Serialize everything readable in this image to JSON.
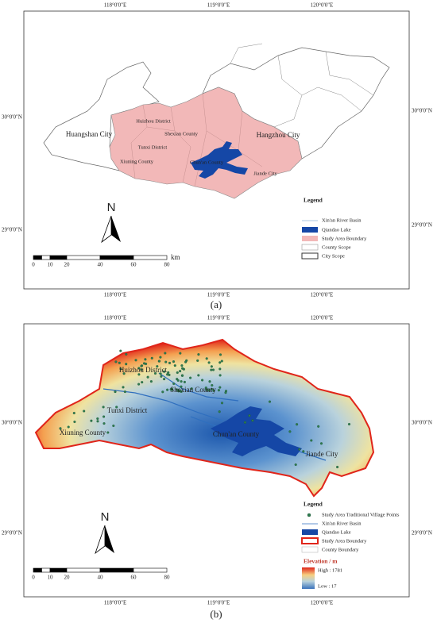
{
  "panel_a": {
    "caption": "(a)",
    "lon_top": [
      "118°0'0\"E",
      "119°0'0\"E",
      "120°0'0\"E"
    ],
    "lon_bottom": [
      "118°0'0\"E",
      "119°0'0\"E",
      "120°0'0\"E"
    ],
    "lat_left": [
      "30°0'0\"N",
      "29°0'0\"N"
    ],
    "lat_right": [
      "30°0'0\"N",
      "29°0'0\"N"
    ],
    "places": [
      "Huangshan City",
      "Huizhou District",
      "Shexian County",
      "Tunxi District",
      "Xiuning County",
      "Chun'an County",
      "Jiande City",
      "Hangzhou City"
    ],
    "north": "N",
    "scale": {
      "ticks": [
        0,
        10,
        20,
        40,
        60,
        80
      ],
      "unit": "km"
    },
    "legend": {
      "title": "Legend",
      "items": [
        "Xin'an River Basin",
        "Qiandao Lake",
        "Study Area Boundary",
        "County Scope",
        "City Scope"
      ]
    }
  },
  "panel_b": {
    "caption": "(b)",
    "lon_top": [
      "118°0'0\"E",
      "119°0'0\"E",
      "120°0'0\"E"
    ],
    "lon_bottom": [
      "118°0'0\"E",
      "119°0'0\"E",
      "120°0'0\"E"
    ],
    "lat_left": [
      "30°0'0\"N",
      "29°0'0\"N"
    ],
    "lat_right": [
      "30°0'0\"N",
      "29°0'0\"N"
    ],
    "places": [
      "Huizhou District",
      "Shexian County",
      "Tunxi District",
      "Xiuning County",
      "Chun'an County",
      "Jiande City"
    ],
    "north": "N",
    "scale": {
      "ticks": [
        0,
        10,
        20,
        40,
        60,
        80
      ]
    },
    "legend": {
      "title": "Legend",
      "items": [
        "Study Area Traditional Village Points",
        "Xin'an River Basin",
        "Qiandao Lake",
        "Study Area Boundary",
        "County Boundary"
      ]
    },
    "elevation": {
      "title": "Elevation / m",
      "high": "High : 1781",
      "low": "Low : 17"
    }
  }
}
